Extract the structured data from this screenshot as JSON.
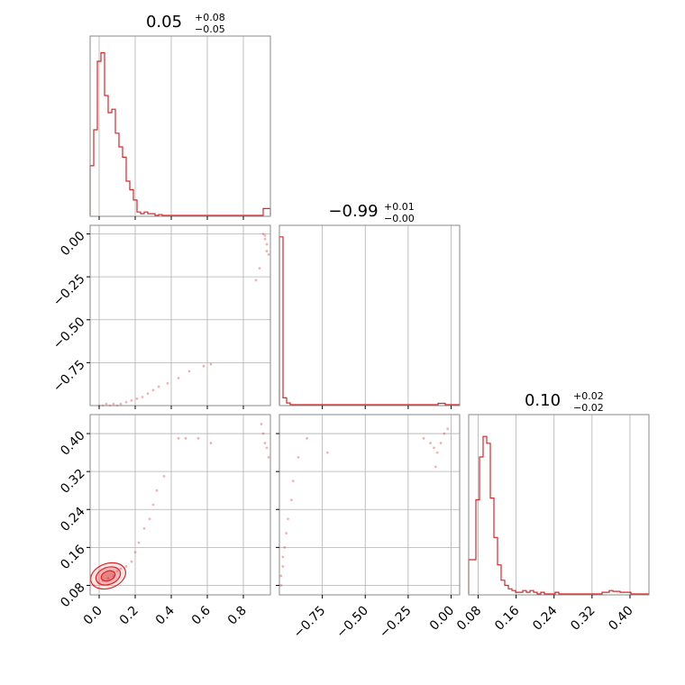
{
  "chart_data": {
    "type": "corner",
    "color": "#d62728",
    "parameters": [
      {
        "median": "0.05",
        "upper": "+0.08",
        "lower": "−0.05",
        "range": [
          -0.05,
          0.95
        ],
        "ticks": [
          0.0,
          0.2,
          0.4,
          0.6,
          0.8
        ],
        "tick_labels": [
          "0.0",
          "0.2",
          "0.4",
          "0.6",
          "0.8"
        ]
      },
      {
        "median": "−0.99",
        "upper": "+0.01",
        "lower": "−0.00",
        "range": [
          -1.0,
          0.05
        ],
        "ticks": [
          -0.75,
          -0.5,
          -0.25,
          0.0
        ],
        "tick_labels": [
          "−0.75",
          "−0.50",
          "−0.25",
          "0.00"
        ]
      },
      {
        "median": "0.10",
        "upper": "+0.02",
        "lower": "−0.02",
        "range": [
          0.06,
          0.44
        ],
        "ticks": [
          0.08,
          0.16,
          0.24,
          0.32,
          0.4
        ],
        "tick_labels": [
          "0.08",
          "0.16",
          "0.24",
          "0.32",
          "0.40"
        ]
      }
    ],
    "histograms": [
      {
        "param": 0,
        "bin_start": -0.05,
        "bin_width": 0.02,
        "counts": [
          0.29,
          0.5,
          0.9,
          0.95,
          0.7,
          0.6,
          0.62,
          0.48,
          0.4,
          0.34,
          0.2,
          0.15,
          0.09,
          0.02,
          0.01,
          0.02,
          0.01,
          0.01,
          0.0,
          0.005,
          0.0,
          0.0,
          0.0,
          0.0,
          0.0,
          0.0,
          0.0,
          0.0,
          0.0,
          0.0,
          0.0,
          0.0,
          0.0,
          0.0,
          0.0,
          0.0,
          0.0,
          0.0,
          0.0,
          0.0,
          0.0,
          0.0,
          0.0,
          0.0,
          0.0,
          0.0,
          0.0,
          0.0,
          0.04,
          0.04
        ]
      },
      {
        "param": 1,
        "bin_start": -1.0,
        "bin_width": 0.021,
        "counts": [
          0.98,
          0.04,
          0.01,
          0.0,
          0.0,
          0.0,
          0.0,
          0.0,
          0.0,
          0.0,
          0.0,
          0.0,
          0.0,
          0.0,
          0.0,
          0.0,
          0.0,
          0.0,
          0.0,
          0.0,
          0.0,
          0.0,
          0.0,
          0.0,
          0.0,
          0.0,
          0.0,
          0.0,
          0.0,
          0.0,
          0.0,
          0.0,
          0.0,
          0.0,
          0.0,
          0.0,
          0.0,
          0.0,
          0.0,
          0.0,
          0.0,
          0.0,
          0.0,
          0.0,
          0.008,
          0.008,
          0.0,
          0.0,
          0.0,
          0.0
        ]
      },
      {
        "param": 2,
        "bin_start": 0.06,
        "bin_width": 0.0076,
        "counts": [
          0.2,
          0.2,
          0.55,
          0.8,
          0.92,
          0.88,
          0.56,
          0.33,
          0.17,
          0.08,
          0.05,
          0.03,
          0.02,
          0.01,
          0.01,
          0.02,
          0.01,
          0.02,
          0.01,
          0.0,
          0.01,
          0.0,
          0.0,
          0.0,
          0.01,
          0.0,
          0.0,
          0.0,
          0.0,
          0.0,
          0.0,
          0.0,
          0.0,
          0.0,
          0.0,
          0.0,
          0.0,
          0.01,
          0.01,
          0.02,
          0.015,
          0.015,
          0.01,
          0.01,
          0.01,
          0.0,
          0.0,
          0.0,
          0.0,
          0.0
        ]
      }
    ],
    "scatter_samples": {
      "p1_vs_p0": [
        [
          0.0,
          -1.0
        ],
        [
          0.02,
          -1.0
        ],
        [
          0.04,
          -0.99
        ],
        [
          0.06,
          -1.0
        ],
        [
          0.08,
          -0.99
        ],
        [
          0.1,
          -1.0
        ],
        [
          0.12,
          -0.99
        ],
        [
          0.15,
          -0.98
        ],
        [
          0.18,
          -0.97
        ],
        [
          0.21,
          -0.96
        ],
        [
          0.24,
          -0.95
        ],
        [
          0.27,
          -0.93
        ],
        [
          0.3,
          -0.91
        ],
        [
          0.33,
          -0.89
        ],
        [
          0.38,
          -0.87
        ],
        [
          0.44,
          -0.84
        ],
        [
          0.5,
          -0.8
        ],
        [
          0.58,
          -0.77
        ],
        [
          0.62,
          -0.76
        ],
        [
          0.92,
          -0.03
        ],
        [
          0.93,
          -0.06
        ],
        [
          0.93,
          -0.1
        ],
        [
          0.94,
          -0.12
        ],
        [
          0.92,
          -0.01
        ],
        [
          0.91,
          0.0
        ],
        [
          0.89,
          -0.2
        ],
        [
          0.87,
          -0.27
        ]
      ],
      "p2_vs_p0": [
        [
          -0.03,
          0.08
        ],
        [
          0.0,
          0.085
        ],
        [
          0.02,
          0.09
        ],
        [
          0.05,
          0.095
        ],
        [
          0.08,
          0.1
        ],
        [
          0.1,
          0.11
        ],
        [
          0.12,
          0.115
        ],
        [
          0.15,
          0.12
        ],
        [
          0.18,
          0.13
        ],
        [
          0.2,
          0.15
        ],
        [
          0.22,
          0.17
        ],
        [
          0.25,
          0.2
        ],
        [
          0.28,
          0.22
        ],
        [
          0.3,
          0.25
        ],
        [
          0.32,
          0.28
        ],
        [
          0.36,
          0.31
        ],
        [
          0.44,
          0.39
        ],
        [
          0.48,
          0.39
        ],
        [
          0.55,
          0.39
        ],
        [
          0.62,
          0.38
        ],
        [
          0.9,
          0.42
        ],
        [
          0.91,
          0.4
        ],
        [
          0.92,
          0.38
        ],
        [
          0.93,
          0.37
        ],
        [
          0.94,
          0.35
        ]
      ],
      "p2_vs_p1": [
        [
          -0.99,
          0.08
        ],
        [
          -0.99,
          0.1
        ],
        [
          -0.98,
          0.12
        ],
        [
          -0.98,
          0.14
        ],
        [
          -0.97,
          0.16
        ],
        [
          -0.96,
          0.19
        ],
        [
          -0.95,
          0.22
        ],
        [
          -0.93,
          0.26
        ],
        [
          -0.92,
          0.3
        ],
        [
          -0.89,
          0.35
        ],
        [
          -0.84,
          0.39
        ],
        [
          -0.72,
          0.36
        ],
        [
          -0.16,
          0.39
        ],
        [
          -0.12,
          0.38
        ],
        [
          -0.1,
          0.37
        ],
        [
          -0.08,
          0.36
        ],
        [
          -0.06,
          0.38
        ],
        [
          -0.04,
          0.4
        ],
        [
          -0.02,
          0.41
        ],
        [
          -0.09,
          0.33
        ]
      ]
    },
    "contours": {
      "p2_vs_p0": {
        "center": [
          0.05,
          0.1
        ],
        "radii": [
          [
            0.04,
            0.01
          ],
          [
            0.07,
            0.018
          ],
          [
            0.1,
            0.026
          ]
        ],
        "tilt_deg": 20
      }
    },
    "grid": true
  }
}
